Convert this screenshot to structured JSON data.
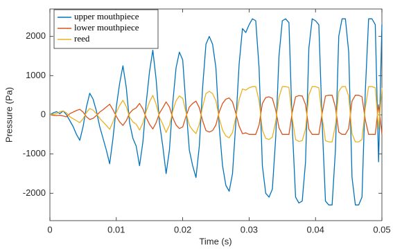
{
  "chart_data": {
    "type": "line",
    "xlabel": "Time (s)",
    "ylabel": "Pressure (Pa)",
    "xlim": [
      0,
      0.05
    ],
    "ylim": [
      -2700,
      2700
    ],
    "xticks": [
      0,
      0.01,
      0.02,
      0.03,
      0.04,
      0.05
    ],
    "yticks": [
      -2000,
      -1000,
      0,
      1000,
      2000
    ],
    "legend": "upper-left",
    "x": [
      0,
      0.0005,
      0.001,
      0.0015,
      0.002,
      0.0025,
      0.003,
      0.0035,
      0.004,
      0.0045,
      0.005,
      0.0055,
      0.006,
      0.0065,
      0.007,
      0.0075,
      0.008,
      0.0085,
      0.009,
      0.0095,
      0.01,
      0.0105,
      0.011,
      0.0115,
      0.012,
      0.0125,
      0.013,
      0.0135,
      0.014,
      0.0145,
      0.015,
      0.0155,
      0.016,
      0.0165,
      0.017,
      0.0175,
      0.018,
      0.0185,
      0.019,
      0.0195,
      0.02,
      0.0205,
      0.021,
      0.0215,
      0.022,
      0.0225,
      0.023,
      0.0235,
      0.024,
      0.0245,
      0.025,
      0.0255,
      0.026,
      0.0265,
      0.027,
      0.0275,
      0.028,
      0.0285,
      0.029,
      0.0295,
      0.03,
      0.0305,
      0.031,
      0.0315,
      0.032,
      0.0325,
      0.033,
      0.0335,
      0.034,
      0.0345,
      0.035,
      0.0355,
      0.036,
      0.0365,
      0.037,
      0.0375,
      0.038,
      0.0385,
      0.039,
      0.0395,
      0.04,
      0.0405,
      0.041,
      0.0415,
      0.042,
      0.0425,
      0.043,
      0.0435,
      0.044,
      0.0445,
      0.045,
      0.0455,
      0.046,
      0.0465,
      0.047,
      0.0475,
      0.048,
      0.0485,
      0.049,
      0.0495,
      0.05
    ],
    "series": [
      {
        "name": "upper mouthpiece",
        "color": "#0072BD",
        "values": [
          0,
          50,
          80,
          30,
          100,
          0,
          -150,
          -300,
          -500,
          -650,
          -300,
          200,
          550,
          400,
          100,
          -300,
          -600,
          -900,
          -1250,
          -600,
          200,
          800,
          1250,
          700,
          -200,
          -600,
          -800,
          -1300,
          -700,
          300,
          1100,
          1650,
          900,
          -200,
          -800,
          -1500,
          -900,
          300,
          1200,
          1600,
          1400,
          200,
          -900,
          -1300,
          -1600,
          -800,
          700,
          1800,
          2000,
          1800,
          1200,
          -300,
          -1300,
          -1800,
          -1950,
          -1500,
          -200,
          1300,
          2200,
          2100,
          2300,
          2450,
          2400,
          1200,
          -1300,
          -2000,
          -2100,
          -1900,
          -600,
          1500,
          2400,
          2450,
          2350,
          -300,
          -2100,
          -2250,
          -2200,
          -1200,
          1700,
          2450,
          2400,
          2300,
          -200,
          -2200,
          -2300,
          -2300,
          -900,
          2000,
          2450,
          2450,
          1600,
          -1600,
          -2300,
          -2300,
          -2100,
          600,
          2450,
          2450,
          2300,
          -1200,
          2300
        ]
      },
      {
        "name": "lower mouthpiece",
        "color": "#D95319",
        "values": [
          0,
          -10,
          -20,
          -10,
          -30,
          -50,
          30,
          70,
          110,
          140,
          70,
          -50,
          -120,
          -90,
          -20,
          70,
          130,
          200,
          270,
          130,
          -40,
          -180,
          -270,
          -150,
          40,
          130,
          180,
          290,
          150,
          -70,
          -240,
          -360,
          -200,
          40,
          180,
          330,
          200,
          -70,
          -260,
          -350,
          -310,
          -40,
          200,
          290,
          350,
          180,
          -150,
          -400,
          -440,
          -400,
          -260,
          70,
          290,
          400,
          430,
          330,
          40,
          -290,
          -480,
          -460,
          -500,
          -500,
          -500,
          -260,
          290,
          440,
          460,
          420,
          130,
          -330,
          -500,
          -500,
          -500,
          70,
          460,
          490,
          480,
          260,
          -370,
          -500,
          -500,
          -500,
          40,
          480,
          500,
          500,
          200,
          -440,
          -500,
          -500,
          -350,
          350,
          500,
          500,
          460,
          -130,
          -500,
          -500,
          -500,
          260,
          -500
        ]
      },
      {
        "name": "reed",
        "color": "#EDB120",
        "values": [
          0,
          15,
          30,
          80,
          100,
          50,
          -50,
          -100,
          -150,
          -200,
          -100,
          60,
          160,
          120,
          30,
          -90,
          -180,
          -270,
          -370,
          -180,
          60,
          240,
          370,
          210,
          -60,
          -180,
          -240,
          -390,
          -210,
          90,
          330,
          495,
          270,
          -60,
          -240,
          -450,
          -270,
          90,
          360,
          480,
          420,
          60,
          -270,
          -390,
          -480,
          -240,
          210,
          540,
          600,
          540,
          360,
          -90,
          -390,
          -540,
          -585,
          -450,
          -60,
          390,
          660,
          630,
          690,
          720,
          720,
          360,
          -390,
          -600,
          -630,
          -570,
          -180,
          450,
          720,
          720,
          700,
          -90,
          -630,
          -680,
          -660,
          -360,
          510,
          720,
          720,
          690,
          -60,
          -660,
          -690,
          -690,
          -270,
          600,
          720,
          720,
          480,
          -480,
          -690,
          -690,
          -630,
          180,
          720,
          720,
          690,
          -360,
          690
        ]
      }
    ]
  }
}
